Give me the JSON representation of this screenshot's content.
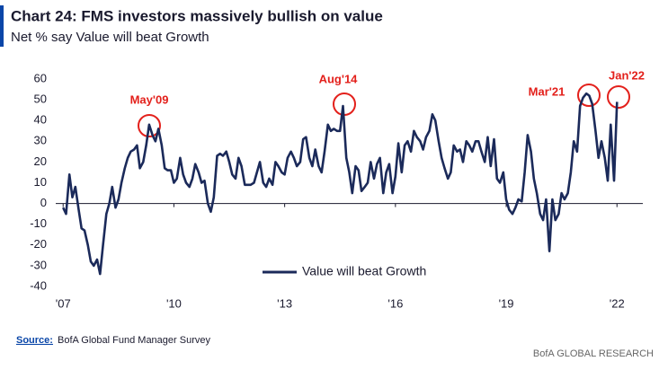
{
  "chart_data": {
    "type": "line",
    "title": "Chart 24: FMS investors massively bullish on value",
    "subtitle": "Net % say Value will beat Growth",
    "source_label": "Source:",
    "source": "BofA Global Fund Manager Survey",
    "footer": "BofA GLOBAL RESEARCH",
    "annotations": [
      {
        "text": "May'09"
      },
      {
        "text": "Aug'14"
      },
      {
        "text": "Mar'21"
      },
      {
        "text": "Jan'22"
      }
    ],
    "xlim": [
      2006.8,
      2022.7
    ],
    "xticks": [
      {
        "value": 2007,
        "label": "'07"
      },
      {
        "value": 2010,
        "label": "'10"
      },
      {
        "value": 2013,
        "label": "'13"
      },
      {
        "value": 2016,
        "label": "'16"
      },
      {
        "value": 2019,
        "label": "'19"
      },
      {
        "value": 2022,
        "label": "'22"
      }
    ],
    "ylim": [
      -40,
      60
    ],
    "yticks": [
      -40,
      -30,
      -20,
      -10,
      0,
      10,
      20,
      30,
      40,
      50,
      60
    ],
    "legend": "bottom-center",
    "x": [
      2007.0,
      2007.08,
      2007.17,
      2007.25,
      2007.33,
      2007.42,
      2007.5,
      2007.58,
      2007.67,
      2007.75,
      2007.83,
      2007.92,
      2008.0,
      2008.08,
      2008.17,
      2008.25,
      2008.33,
      2008.42,
      2008.5,
      2008.58,
      2008.67,
      2008.75,
      2008.83,
      2008.92,
      2009.0,
      2009.08,
      2009.17,
      2009.25,
      2009.33,
      2009.42,
      2009.5,
      2009.58,
      2009.67,
      2009.75,
      2009.83,
      2009.92,
      2010.0,
      2010.08,
      2010.17,
      2010.25,
      2010.33,
      2010.42,
      2010.5,
      2010.58,
      2010.67,
      2010.75,
      2010.83,
      2010.92,
      2011.0,
      2011.08,
      2011.17,
      2011.25,
      2011.33,
      2011.42,
      2011.5,
      2011.58,
      2011.67,
      2011.75,
      2011.83,
      2011.92,
      2012.0,
      2012.08,
      2012.17,
      2012.25,
      2012.33,
      2012.42,
      2012.5,
      2012.58,
      2012.67,
      2012.75,
      2012.83,
      2012.92,
      2013.0,
      2013.08,
      2013.17,
      2013.25,
      2013.33,
      2013.42,
      2013.5,
      2013.58,
      2013.67,
      2013.75,
      2013.83,
      2013.92,
      2014.0,
      2014.08,
      2014.17,
      2014.25,
      2014.33,
      2014.42,
      2014.5,
      2014.58,
      2014.67,
      2014.75,
      2014.83,
      2014.92,
      2015.0,
      2015.08,
      2015.17,
      2015.25,
      2015.33,
      2015.42,
      2015.5,
      2015.58,
      2015.67,
      2015.75,
      2015.83,
      2015.92,
      2016.0,
      2016.08,
      2016.17,
      2016.25,
      2016.33,
      2016.42,
      2016.5,
      2016.58,
      2016.67,
      2016.75,
      2016.83,
      2016.92,
      2017.0,
      2017.08,
      2017.17,
      2017.25,
      2017.33,
      2017.42,
      2017.5,
      2017.58,
      2017.67,
      2017.75,
      2017.83,
      2017.92,
      2018.0,
      2018.08,
      2018.17,
      2018.25,
      2018.33,
      2018.42,
      2018.5,
      2018.58,
      2018.67,
      2018.75,
      2018.83,
      2018.92,
      2019.0,
      2019.08,
      2019.17,
      2019.25,
      2019.33,
      2019.42,
      2019.5,
      2019.58,
      2019.67,
      2019.75,
      2019.83,
      2019.92,
      2020.0,
      2020.08,
      2020.17,
      2020.25,
      2020.33,
      2020.42,
      2020.5,
      2020.58,
      2020.67,
      2020.75,
      2020.83,
      2020.92,
      2021.0,
      2021.08,
      2021.17,
      2021.25,
      2021.33,
      2021.42,
      2021.5,
      2021.58,
      2021.67,
      2021.75,
      2021.83,
      2021.92,
      2022.0
    ],
    "series": [
      {
        "name": "Value will beat Growth",
        "color": "#1b2a5a",
        "values": [
          -2,
          -5,
          14,
          3,
          8,
          -3,
          -12,
          -13,
          -20,
          -28,
          -30,
          -27,
          -34,
          -20,
          -5,
          0,
          8,
          -2,
          2,
          10,
          17,
          22,
          25,
          26,
          28,
          17,
          20,
          28,
          38,
          33,
          30,
          36,
          28,
          17,
          16,
          16,
          10,
          12,
          22,
          14,
          10,
          8,
          12,
          19,
          15,
          10,
          11,
          0,
          -4,
          3,
          23,
          24,
          23,
          25,
          20,
          14,
          12,
          22,
          18,
          9,
          9,
          9,
          10,
          15,
          20,
          10,
          8,
          12,
          9,
          20,
          18,
          15,
          14,
          22,
          25,
          22,
          18,
          20,
          31,
          32,
          22,
          18,
          26,
          18,
          15,
          25,
          38,
          35,
          36,
          35,
          35,
          47,
          22,
          15,
          5,
          18,
          16,
          6,
          8,
          10,
          20,
          12,
          19,
          22,
          5,
          15,
          19,
          5,
          13,
          29,
          15,
          28,
          30,
          25,
          35,
          32,
          30,
          26,
          32,
          35,
          43,
          40,
          30,
          22,
          17,
          12,
          15,
          28,
          25,
          26,
          20,
          30,
          28,
          25,
          30,
          30,
          25,
          20,
          32,
          18,
          31,
          12,
          10,
          15,
          2,
          -3,
          -5,
          -2,
          2,
          1,
          15,
          33,
          25,
          12,
          5,
          -5,
          -8,
          2,
          -23,
          2,
          -8,
          -5,
          5,
          2,
          5,
          15,
          30,
          25,
          47,
          51,
          53,
          52,
          48,
          35,
          22,
          30,
          22,
          11,
          38,
          11,
          49
        ]
      }
    ]
  }
}
